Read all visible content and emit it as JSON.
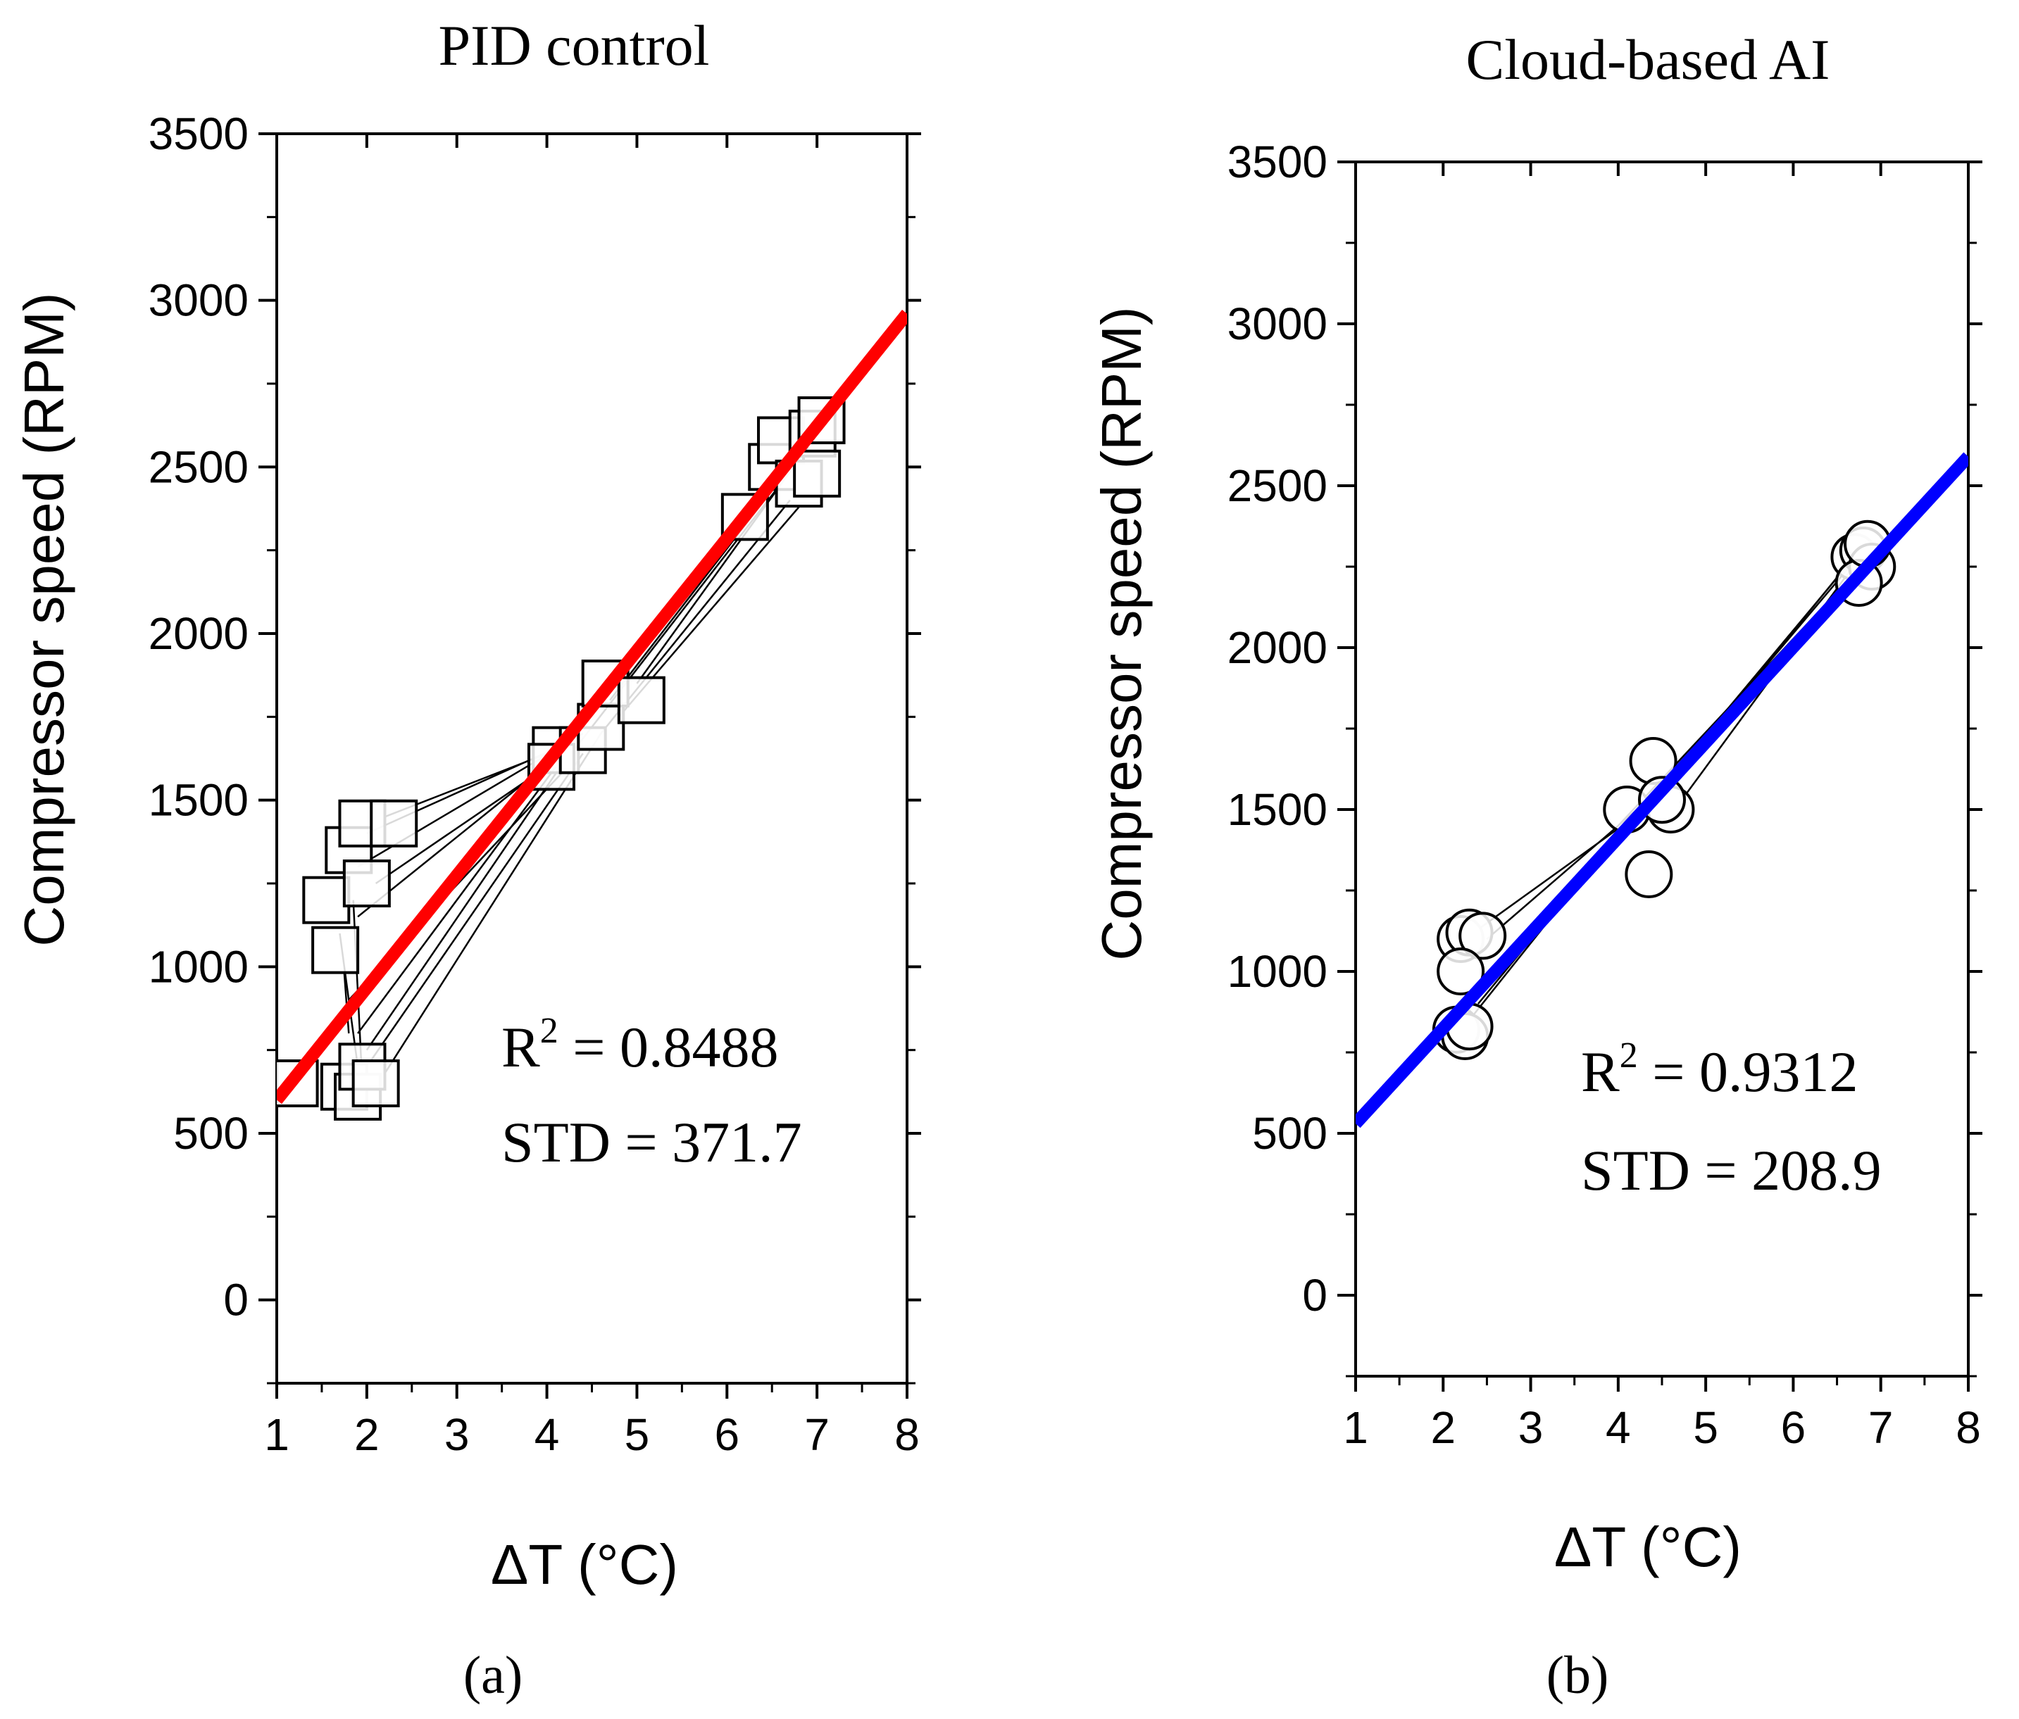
{
  "chart_data": [
    {
      "id": "a",
      "type": "scatter",
      "title": "PID control",
      "xlabel": "ΔT  (°C)",
      "ylabel": "Compressor speed (RPM)",
      "xlim": [
        1,
        8
      ],
      "ylim": [
        -250,
        3500
      ],
      "xticks": [
        1,
        2,
        3,
        4,
        5,
        6,
        7,
        8
      ],
      "yticks": [
        0,
        500,
        1000,
        1500,
        2000,
        2500,
        3000,
        3500
      ],
      "marker": "square",
      "fit_color": "#ff0000",
      "fit_line": {
        "x": [
          1,
          8
        ],
        "y": [
          600,
          2960
        ]
      },
      "points": [
        {
          "x": 1.2,
          "y": 650
        },
        {
          "x": 1.75,
          "y": 640
        },
        {
          "x": 1.9,
          "y": 610
        },
        {
          "x": 1.95,
          "y": 700
        },
        {
          "x": 2.1,
          "y": 650
        },
        {
          "x": 1.65,
          "y": 1050
        },
        {
          "x": 1.55,
          "y": 1200
        },
        {
          "x": 1.8,
          "y": 1350
        },
        {
          "x": 2.0,
          "y": 1250
        },
        {
          "x": 1.95,
          "y": 1430
        },
        {
          "x": 2.3,
          "y": 1430
        },
        {
          "x": 4.1,
          "y": 1650
        },
        {
          "x": 4.05,
          "y": 1600
        },
        {
          "x": 4.4,
          "y": 1650
        },
        {
          "x": 4.6,
          "y": 1720
        },
        {
          "x": 4.65,
          "y": 1850
        },
        {
          "x": 5.05,
          "y": 1800
        },
        {
          "x": 6.2,
          "y": 2350
        },
        {
          "x": 6.5,
          "y": 2500
        },
        {
          "x": 6.6,
          "y": 2580
        },
        {
          "x": 6.8,
          "y": 2450
        },
        {
          "x": 6.95,
          "y": 2600
        },
        {
          "x": 7.0,
          "y": 2480
        },
        {
          "x": 7.05,
          "y": 2640
        }
      ],
      "trajectories": [
        [
          [
            2.2,
            1450
          ],
          [
            4.1,
            1650
          ]
        ],
        [
          [
            2.0,
            1400
          ],
          [
            4.3,
            1680
          ]
        ],
        [
          [
            1.9,
            1300
          ],
          [
            4.4,
            1700
          ]
        ],
        [
          [
            2.1,
            1250
          ],
          [
            4.0,
            1600
          ]
        ],
        [
          [
            1.9,
            1150
          ],
          [
            4.2,
            1650
          ]
        ],
        [
          [
            1.8,
            900
          ],
          [
            4.3,
            1620
          ]
        ],
        [
          [
            1.9,
            800
          ],
          [
            4.1,
            1600
          ]
        ],
        [
          [
            2.0,
            750
          ],
          [
            4.2,
            1620
          ]
        ],
        [
          [
            2.05,
            720
          ],
          [
            4.4,
            1640
          ]
        ],
        [
          [
            2.2,
            680
          ],
          [
            4.6,
            1700
          ]
        ],
        [
          [
            4.3,
            1650
          ],
          [
            6.6,
            2450
          ]
        ],
        [
          [
            4.6,
            1700
          ],
          [
            6.7,
            2400
          ]
        ],
        [
          [
            4.8,
            1750
          ],
          [
            6.8,
            2380
          ]
        ],
        [
          [
            5.0,
            1850
          ],
          [
            6.9,
            2560
          ]
        ],
        [
          [
            4.7,
            1800
          ],
          [
            6.7,
            2500
          ]
        ],
        [
          [
            1.7,
            1100
          ],
          [
            1.9,
            700
          ]
        ],
        [
          [
            1.85,
            1200
          ],
          [
            1.95,
            650
          ]
        ],
        [
          [
            1.75,
            980
          ],
          [
            1.8,
            800
          ]
        ]
      ],
      "annotation": {
        "r2_label": "R",
        "r2_sup": "2",
        "r2_value": " = 0.8488",
        "std": "STD = 371.7"
      },
      "panel_label": "(a)"
    },
    {
      "id": "b",
      "type": "scatter",
      "title": "Cloud-based AI",
      "xlabel": "ΔT (°C)",
      "ylabel": "Compressor speed (RPM)",
      "xlim": [
        1,
        8
      ],
      "ylim": [
        -250,
        3500
      ],
      "xticks": [
        1,
        2,
        3,
        4,
        5,
        6,
        7,
        8
      ],
      "yticks": [
        0,
        500,
        1000,
        1500,
        2000,
        2500,
        3000,
        3500
      ],
      "marker": "circle",
      "fit_color": "#0000ff",
      "fit_line": {
        "x": [
          1,
          8
        ],
        "y": [
          530,
          2590
        ]
      },
      "points": [
        {
          "x": 2.2,
          "y": 1100
        },
        {
          "x": 2.3,
          "y": 1120
        },
        {
          "x": 2.45,
          "y": 1110
        },
        {
          "x": 2.2,
          "y": 1000
        },
        {
          "x": 2.15,
          "y": 820
        },
        {
          "x": 2.25,
          "y": 800
        },
        {
          "x": 2.3,
          "y": 830
        },
        {
          "x": 4.1,
          "y": 1500
        },
        {
          "x": 4.4,
          "y": 1650
        },
        {
          "x": 4.6,
          "y": 1500
        },
        {
          "x": 4.5,
          "y": 1530
        },
        {
          "x": 4.35,
          "y": 1300
        },
        {
          "x": 6.7,
          "y": 2280
        },
        {
          "x": 6.8,
          "y": 2300
        },
        {
          "x": 6.9,
          "y": 2250
        },
        {
          "x": 6.75,
          "y": 2200
        },
        {
          "x": 6.85,
          "y": 2320
        }
      ],
      "trajectories": [
        [
          [
            2.4,
            1130
          ],
          [
            4.2,
            1480
          ]
        ],
        [
          [
            2.5,
            1100
          ],
          [
            4.3,
            1520
          ]
        ],
        [
          [
            2.3,
            850
          ],
          [
            4.1,
            1460
          ]
        ],
        [
          [
            2.4,
            900
          ],
          [
            4.2,
            1490
          ]
        ],
        [
          [
            2.5,
            950
          ],
          [
            4.4,
            1530
          ]
        ],
        [
          [
            4.5,
            1550
          ],
          [
            6.6,
            2250
          ]
        ],
        [
          [
            4.6,
            1600
          ],
          [
            6.7,
            2280
          ]
        ],
        [
          [
            4.3,
            1500
          ],
          [
            6.8,
            2300
          ]
        ],
        [
          [
            4.0,
            1450
          ],
          [
            6.6,
            2200
          ]
        ],
        [
          [
            4.7,
            1520
          ],
          [
            6.9,
            2330
          ]
        ]
      ],
      "annotation": {
        "r2_label": "R",
        "r2_sup": "2",
        "r2_value": " = 0.9312",
        "std": "STD = 208.9"
      },
      "panel_label": "(b)"
    }
  ]
}
